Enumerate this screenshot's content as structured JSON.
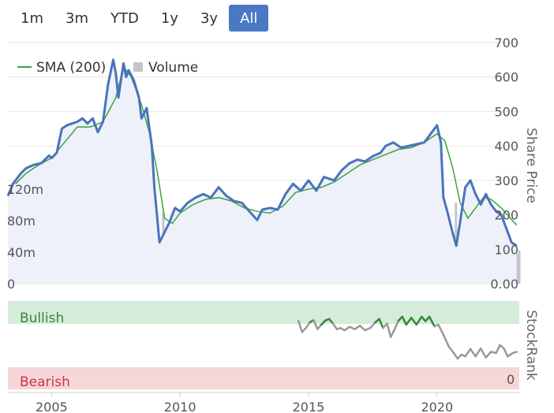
{
  "range_buttons": [
    {
      "label": "1m",
      "active": false
    },
    {
      "label": "3m",
      "active": false
    },
    {
      "label": "YTD",
      "active": false
    },
    {
      "label": "1y",
      "active": false
    },
    {
      "label": "3y",
      "active": false
    },
    {
      "label": "All",
      "active": true
    }
  ],
  "colors": {
    "price": "#4a73bd",
    "sma": "#3aa33a",
    "volume": "#c4c4cc",
    "active_button": "#4a78c2",
    "bullish_band": "#d6ecda",
    "bearish_band": "#f6d6d8",
    "bullish_text": "#2f8a3a",
    "bearish_text": "#cc3344",
    "rank_neutral": "#999999"
  },
  "chart_data": [
    {
      "type": "line",
      "legend": {
        "placement": "top-left",
        "items": [
          "SMA (200)",
          "Volume"
        ]
      },
      "y_right_label": "Share Price",
      "y_right_ticks": [
        "700",
        "600",
        "500",
        "400",
        "300",
        "200",
        "100",
        "0.00"
      ],
      "y_right_range": [
        0,
        700
      ],
      "y_left_ticks": [
        "120m",
        "80m",
        "40m",
        "0"
      ],
      "y_left_range": [
        0,
        160
      ],
      "x_ticks": [
        "2005",
        "2010",
        "2015",
        "2020"
      ],
      "x_range": [
        2003.3,
        2023.2
      ],
      "grid": true,
      "series": [
        {
          "name": "Share Price",
          "points": [
            [
              2003.3,
              255
            ],
            [
              2003.5,
              290
            ],
            [
              2003.8,
              320
            ],
            [
              2004.0,
              335
            ],
            [
              2004.3,
              345
            ],
            [
              2004.6,
              350
            ],
            [
              2004.9,
              372
            ],
            [
              2005.0,
              365
            ],
            [
              2005.2,
              380
            ],
            [
              2005.4,
              450
            ],
            [
              2005.6,
              460
            ],
            [
              2005.8,
              465
            ],
            [
              2006.0,
              470
            ],
            [
              2006.2,
              480
            ],
            [
              2006.4,
              465
            ],
            [
              2006.6,
              480
            ],
            [
              2006.8,
              440
            ],
            [
              2007.0,
              470
            ],
            [
              2007.2,
              580
            ],
            [
              2007.4,
              650
            ],
            [
              2007.5,
              610
            ],
            [
              2007.6,
              540
            ],
            [
              2007.8,
              640
            ],
            [
              2007.9,
              600
            ],
            [
              2008.0,
              620
            ],
            [
              2008.2,
              590
            ],
            [
              2008.4,
              540
            ],
            [
              2008.5,
              480
            ],
            [
              2008.7,
              510
            ],
            [
              2008.9,
              400
            ],
            [
              2009.0,
              280
            ],
            [
              2009.1,
              200
            ],
            [
              2009.2,
              120
            ],
            [
              2009.4,
              150
            ],
            [
              2009.6,
              180
            ],
            [
              2009.8,
              220
            ],
            [
              2010.0,
              210
            ],
            [
              2010.3,
              235
            ],
            [
              2010.6,
              250
            ],
            [
              2010.9,
              260
            ],
            [
              2011.2,
              250
            ],
            [
              2011.5,
              280
            ],
            [
              2011.8,
              255
            ],
            [
              2012.1,
              240
            ],
            [
              2012.4,
              235
            ],
            [
              2012.7,
              210
            ],
            [
              2013.0,
              185
            ],
            [
              2013.2,
              215
            ],
            [
              2013.5,
              220
            ],
            [
              2013.8,
              215
            ],
            [
              2014.1,
              260
            ],
            [
              2014.4,
              290
            ],
            [
              2014.7,
              270
            ],
            [
              2015.0,
              300
            ],
            [
              2015.3,
              270
            ],
            [
              2015.6,
              310
            ],
            [
              2016.0,
              300
            ],
            [
              2016.3,
              330
            ],
            [
              2016.6,
              350
            ],
            [
              2016.9,
              360
            ],
            [
              2017.2,
              355
            ],
            [
              2017.5,
              370
            ],
            [
              2017.8,
              380
            ],
            [
              2018.0,
              400
            ],
            [
              2018.3,
              410
            ],
            [
              2018.6,
              395
            ],
            [
              2018.9,
              400
            ],
            [
              2019.2,
              405
            ],
            [
              2019.5,
              410
            ],
            [
              2019.8,
              440
            ],
            [
              2020.0,
              460
            ],
            [
              2020.15,
              410
            ],
            [
              2020.25,
              250
            ],
            [
              2020.4,
              210
            ],
            [
              2020.6,
              150
            ],
            [
              2020.75,
              110
            ],
            [
              2020.9,
              180
            ],
            [
              2021.1,
              280
            ],
            [
              2021.3,
              300
            ],
            [
              2021.5,
              260
            ],
            [
              2021.7,
              230
            ],
            [
              2021.9,
              260
            ],
            [
              2022.1,
              230
            ],
            [
              2022.3,
              210
            ],
            [
              2022.5,
              200
            ],
            [
              2022.7,
              160
            ],
            [
              2022.9,
              120
            ],
            [
              2023.1,
              110
            ]
          ]
        },
        {
          "name": "SMA (200)",
          "points": [
            [
              2003.6,
              290
            ],
            [
              2004.0,
              320
            ],
            [
              2004.5,
              345
            ],
            [
              2005.0,
              365
            ],
            [
              2005.5,
              410
            ],
            [
              2006.0,
              455
            ],
            [
              2006.5,
              455
            ],
            [
              2007.0,
              470
            ],
            [
              2007.5,
              540
            ],
            [
              2007.8,
              630
            ],
            [
              2008.1,
              600
            ],
            [
              2008.5,
              520
            ],
            [
              2008.8,
              440
            ],
            [
              2009.1,
              330
            ],
            [
              2009.4,
              190
            ],
            [
              2009.7,
              175
            ],
            [
              2010.0,
              205
            ],
            [
              2010.5,
              230
            ],
            [
              2011.0,
              245
            ],
            [
              2011.5,
              250
            ],
            [
              2012.0,
              240
            ],
            [
              2012.5,
              220
            ],
            [
              2013.0,
              210
            ],
            [
              2013.5,
              205
            ],
            [
              2014.0,
              225
            ],
            [
              2014.5,
              265
            ],
            [
              2015.0,
              275
            ],
            [
              2015.5,
              280
            ],
            [
              2016.0,
              295
            ],
            [
              2016.5,
              320
            ],
            [
              2017.0,
              345
            ],
            [
              2017.5,
              360
            ],
            [
              2018.0,
              375
            ],
            [
              2018.5,
              390
            ],
            [
              2019.0,
              395
            ],
            [
              2019.5,
              410
            ],
            [
              2020.0,
              435
            ],
            [
              2020.3,
              415
            ],
            [
              2020.6,
              340
            ],
            [
              2020.9,
              235
            ],
            [
              2021.2,
              190
            ],
            [
              2021.5,
              220
            ],
            [
              2021.8,
              250
            ],
            [
              2022.1,
              245
            ],
            [
              2022.5,
              220
            ],
            [
              2022.8,
              195
            ],
            [
              2023.1,
              170
            ]
          ]
        }
      ],
      "volume": {
        "name": "Volume",
        "points": [
          [
            2003.4,
            18
          ],
          [
            2003.8,
            22
          ],
          [
            2004.2,
            20
          ],
          [
            2004.6,
            25
          ],
          [
            2005.0,
            30
          ],
          [
            2005.4,
            28
          ],
          [
            2005.8,
            35
          ],
          [
            2006.2,
            30
          ],
          [
            2006.6,
            32
          ],
          [
            2007.0,
            40
          ],
          [
            2007.4,
            55
          ],
          [
            2007.8,
            45
          ],
          [
            2008.2,
            60
          ],
          [
            2008.6,
            40
          ],
          [
            2008.9,
            65
          ],
          [
            2009.2,
            80
          ],
          [
            2009.5,
            55
          ],
          [
            2009.8,
            40
          ],
          [
            2010.2,
            30
          ],
          [
            2010.6,
            28
          ],
          [
            2011.0,
            32
          ],
          [
            2011.5,
            30
          ],
          [
            2012.0,
            28
          ],
          [
            2012.5,
            25
          ],
          [
            2013.0,
            26
          ],
          [
            2013.5,
            22
          ],
          [
            2014.0,
            20
          ],
          [
            2014.5,
            18
          ],
          [
            2015.0,
            18
          ],
          [
            2015.5,
            16
          ],
          [
            2016.0,
            16
          ],
          [
            2016.5,
            15
          ],
          [
            2017.0,
            15
          ],
          [
            2017.5,
            14
          ],
          [
            2018.0,
            16
          ],
          [
            2018.5,
            15
          ],
          [
            2019.0,
            14
          ],
          [
            2019.5,
            15
          ],
          [
            2020.0,
            18
          ],
          [
            2020.3,
            60
          ],
          [
            2020.6,
            70
          ],
          [
            2020.9,
            65
          ],
          [
            2021.2,
            55
          ],
          [
            2021.5,
            45
          ],
          [
            2021.8,
            40
          ],
          [
            2022.2,
            50
          ],
          [
            2022.6,
            45
          ],
          [
            2023.0,
            40
          ]
        ]
      }
    },
    {
      "type": "line",
      "y_right_label": "StockRank",
      "y_right_ticks": [
        "0"
      ],
      "bands": [
        {
          "label": "Bullish"
        },
        {
          "label": "Bearish"
        }
      ],
      "y_range": [
        0,
        100
      ],
      "x_range": [
        2003.3,
        2023.2
      ],
      "series": [
        {
          "name": "StockRank",
          "points": [
            [
              2014.6,
              85
            ],
            [
              2014.75,
              65
            ],
            [
              2014.9,
              72
            ],
            [
              2015.05,
              82
            ],
            [
              2015.2,
              86
            ],
            [
              2015.35,
              70
            ],
            [
              2015.5,
              78
            ],
            [
              2015.65,
              85
            ],
            [
              2015.8,
              88
            ],
            [
              2015.95,
              80
            ],
            [
              2016.1,
              70
            ],
            [
              2016.25,
              72
            ],
            [
              2016.4,
              68
            ],
            [
              2016.6,
              74
            ],
            [
              2016.8,
              70
            ],
            [
              2017.0,
              76
            ],
            [
              2017.2,
              68
            ],
            [
              2017.4,
              72
            ],
            [
              2017.6,
              82
            ],
            [
              2017.75,
              88
            ],
            [
              2017.9,
              72
            ],
            [
              2018.05,
              80
            ],
            [
              2018.2,
              56
            ],
            [
              2018.35,
              70
            ],
            [
              2018.5,
              85
            ],
            [
              2018.65,
              92
            ],
            [
              2018.8,
              78
            ],
            [
              2019.0,
              90
            ],
            [
              2019.2,
              78
            ],
            [
              2019.4,
              92
            ],
            [
              2019.55,
              84
            ],
            [
              2019.7,
              92
            ],
            [
              2019.9,
              75
            ],
            [
              2020.05,
              78
            ],
            [
              2020.25,
              60
            ],
            [
              2020.45,
              40
            ],
            [
              2020.65,
              28
            ],
            [
              2020.8,
              18
            ],
            [
              2020.95,
              25
            ],
            [
              2021.1,
              22
            ],
            [
              2021.3,
              35
            ],
            [
              2021.5,
              22
            ],
            [
              2021.7,
              36
            ],
            [
              2021.9,
              20
            ],
            [
              2022.1,
              30
            ],
            [
              2022.3,
              28
            ],
            [
              2022.45,
              42
            ],
            [
              2022.6,
              36
            ],
            [
              2022.75,
              22
            ],
            [
              2022.95,
              28
            ],
            [
              2023.1,
              30
            ]
          ]
        }
      ]
    }
  ]
}
